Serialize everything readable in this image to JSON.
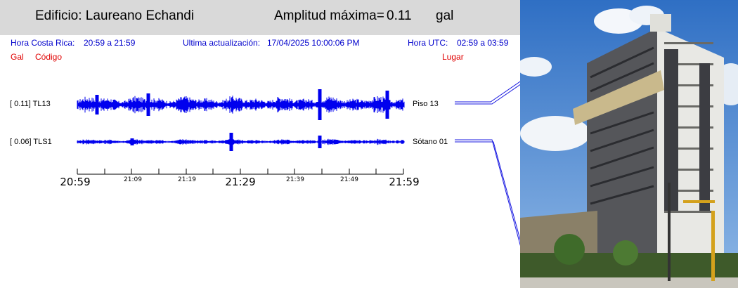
{
  "header": {
    "building_label": "Edificio: Laureano Echandi",
    "amplitude_label": "Amplitud máxima=",
    "amplitude_value": "0.11",
    "amplitude_unit": "gal"
  },
  "info_row": {
    "local_time_label": "Hora Costa Rica:",
    "local_time_value": "20:59 a 21:59",
    "update_label": "Ultima actualización:",
    "update_value": "17/04/2025 10:00:06 PM",
    "utc_label": "Hora UTC:",
    "utc_value": "02:59 a 03:59"
  },
  "columns": {
    "gal": "Gal",
    "code": "Código",
    "place": "Lugar"
  },
  "channels": [
    {
      "bracket": "[ 0.11] TL13",
      "place": "Piso 13",
      "peak": 0.11
    },
    {
      "bracket": "[ 0.06] TLS1",
      "place": "Sótano 01",
      "peak": 0.06
    }
  ],
  "time_axis": {
    "major": [
      "20:59",
      "21:29",
      "21:59"
    ],
    "minor": [
      "21:09",
      "21:19",
      "21:39",
      "21:49"
    ]
  },
  "colors": {
    "trace": "#0000ee",
    "header_bg": "#d9d9d9",
    "label_red": "#e00000",
    "info_blue": "#0000cc"
  }
}
